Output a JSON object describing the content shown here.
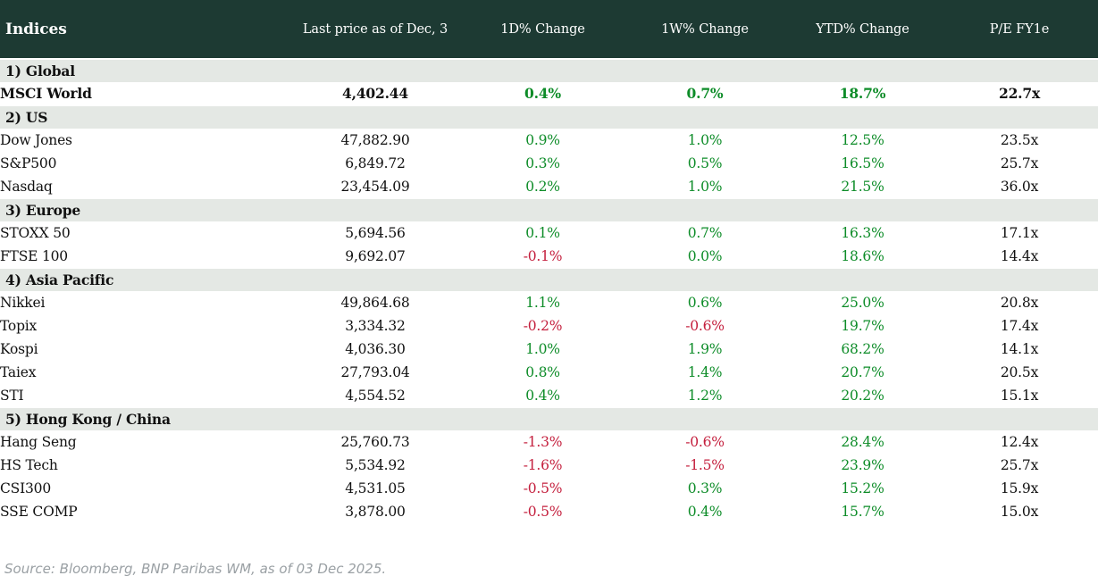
{
  "colors": {
    "header_bg": "#1d3a33",
    "header_text": "#ffffff",
    "section_bg": "#e4e8e4",
    "positive": "#0d8c28",
    "negative": "#c41f3d",
    "text": "#111111",
    "source_text": "#9aa0a4"
  },
  "header": {
    "title": "Indices",
    "columns": [
      "Last price as of Dec, 3",
      "1D% Change",
      "1W% Change",
      "YTD% Change",
      "P/E FY1e"
    ]
  },
  "sections": [
    {
      "label": "1) Global",
      "rows": [
        {
          "name": "MSCI World",
          "last_price": "4,402.44",
          "d1": "0.4%",
          "w1": "0.7%",
          "ytd": "18.7%",
          "pe": "22.7x",
          "bold": true
        }
      ]
    },
    {
      "label": "2) US",
      "rows": [
        {
          "name": "Dow Jones",
          "last_price": "47,882.90",
          "d1": "0.9%",
          "w1": "1.0%",
          "ytd": "12.5%",
          "pe": "23.5x",
          "bold": false
        },
        {
          "name": "S&P500",
          "last_price": "6,849.72",
          "d1": "0.3%",
          "w1": "0.5%",
          "ytd": "16.5%",
          "pe": "25.7x",
          "bold": false
        },
        {
          "name": "Nasdaq",
          "last_price": "23,454.09",
          "d1": "0.2%",
          "w1": "1.0%",
          "ytd": "21.5%",
          "pe": "36.0x",
          "bold": false
        }
      ]
    },
    {
      "label": "3) Europe",
      "rows": [
        {
          "name": "STOXX 50",
          "last_price": "5,694.56",
          "d1": "0.1%",
          "w1": "0.7%",
          "ytd": "16.3%",
          "pe": "17.1x",
          "bold": false
        },
        {
          "name": "FTSE 100",
          "last_price": "9,692.07",
          "d1": "-0.1%",
          "w1": "0.0%",
          "ytd": "18.6%",
          "pe": "14.4x",
          "bold": false
        }
      ]
    },
    {
      "label": "4) Asia Pacific",
      "rows": [
        {
          "name": "Nikkei",
          "last_price": "49,864.68",
          "d1": "1.1%",
          "w1": "0.6%",
          "ytd": "25.0%",
          "pe": "20.8x",
          "bold": false
        },
        {
          "name": "Topix",
          "last_price": "3,334.32",
          "d1": "-0.2%",
          "w1": "-0.6%",
          "ytd": "19.7%",
          "pe": "17.4x",
          "bold": false
        },
        {
          "name": "Kospi",
          "last_price": "4,036.30",
          "d1": "1.0%",
          "w1": "1.9%",
          "ytd": "68.2%",
          "pe": "14.1x",
          "bold": false
        },
        {
          "name": "Taiex",
          "last_price": "27,793.04",
          "d1": "0.8%",
          "w1": "1.4%",
          "ytd": "20.7%",
          "pe": "20.5x",
          "bold": false
        },
        {
          "name": "STI",
          "last_price": "4,554.52",
          "d1": "0.4%",
          "w1": "1.2%",
          "ytd": "20.2%",
          "pe": "15.1x",
          "bold": false
        }
      ]
    },
    {
      "label": "5) Hong Kong / China",
      "rows": [
        {
          "name": "Hang Seng",
          "last_price": "25,760.73",
          "d1": "-1.3%",
          "w1": "-0.6%",
          "ytd": "28.4%",
          "pe": "12.4x",
          "bold": false
        },
        {
          "name": "HS Tech",
          "last_price": "5,534.92",
          "d1": "-1.6%",
          "w1": "-1.5%",
          "ytd": "23.9%",
          "pe": "25.7x",
          "bold": false
        },
        {
          "name": "CSI300",
          "last_price": "4,531.05",
          "d1": "-0.5%",
          "w1": "0.3%",
          "ytd": "15.2%",
          "pe": "15.9x",
          "bold": false
        },
        {
          "name": "SSE COMP",
          "last_price": "3,878.00",
          "d1": "-0.5%",
          "w1": "0.4%",
          "ytd": "15.7%",
          "pe": "15.0x",
          "bold": false
        }
      ]
    }
  ],
  "footer": {
    "source": "Source: Bloomberg, BNP Paribas WM, as of 03 Dec 2025."
  },
  "chart_data": {
    "type": "table",
    "title": "Indices",
    "columns": [
      "Indices",
      "Last price as of Dec, 3",
      "1D% Change",
      "1W% Change",
      "YTD% Change",
      "P/E FY1e"
    ],
    "rows": [
      [
        "1) Global",
        "",
        "",
        "",
        "",
        ""
      ],
      [
        "MSCI World",
        "4,402.44",
        "0.4%",
        "0.7%",
        "18.7%",
        "22.7x"
      ],
      [
        "2) US",
        "",
        "",
        "",
        "",
        ""
      ],
      [
        "Dow Jones",
        "47,882.90",
        "0.9%",
        "1.0%",
        "12.5%",
        "23.5x"
      ],
      [
        "S&P500",
        "6,849.72",
        "0.3%",
        "0.5%",
        "16.5%",
        "25.7x"
      ],
      [
        "Nasdaq",
        "23,454.09",
        "0.2%",
        "1.0%",
        "21.5%",
        "36.0x"
      ],
      [
        "3) Europe",
        "",
        "",
        "",
        "",
        ""
      ],
      [
        "STOXX 50",
        "5,694.56",
        "0.1%",
        "0.7%",
        "16.3%",
        "17.1x"
      ],
      [
        "FTSE 100",
        "9,692.07",
        "-0.1%",
        "0.0%",
        "18.6%",
        "14.4x"
      ],
      [
        "4) Asia Pacific",
        "",
        "",
        "",
        "",
        ""
      ],
      [
        "Nikkei",
        "49,864.68",
        "1.1%",
        "0.6%",
        "25.0%",
        "20.8x"
      ],
      [
        "Topix",
        "3,334.32",
        "-0.2%",
        "-0.6%",
        "19.7%",
        "17.4x"
      ],
      [
        "Kospi",
        "4,036.30",
        "1.0%",
        "1.9%",
        "68.2%",
        "14.1x"
      ],
      [
        "Taiex",
        "27,793.04",
        "0.8%",
        "1.4%",
        "20.7%",
        "20.5x"
      ],
      [
        "STI",
        "4,554.52",
        "0.4%",
        "1.2%",
        "20.2%",
        "15.1x"
      ],
      [
        "5) Hong Kong / China",
        "",
        "",
        "",
        "",
        ""
      ],
      [
        "Hang Seng",
        "25,760.73",
        "-1.3%",
        "-0.6%",
        "28.4%",
        "12.4x"
      ],
      [
        "HS Tech",
        "5,534.92",
        "-1.6%",
        "-1.5%",
        "23.9%",
        "25.7x"
      ],
      [
        "CSI300",
        "4,531.05",
        "-0.5%",
        "0.3%",
        "15.2%",
        "15.9x"
      ],
      [
        "SSE COMP",
        "3,878.00",
        "-0.5%",
        "0.4%",
        "15.7%",
        "15.0x"
      ]
    ],
    "note": "Source: Bloomberg, BNP Paribas WM, as of 03 Dec 2025."
  }
}
